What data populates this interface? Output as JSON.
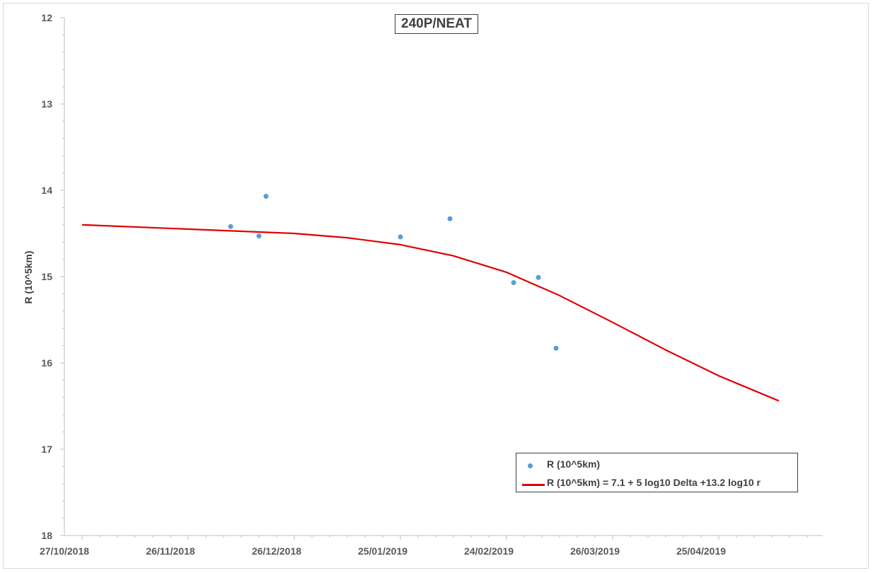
{
  "chart_data": {
    "type": "scatter",
    "title": "240P/NEAT",
    "xlabel": "",
    "ylabel": "R (10^5km)",
    "x_tick_labels": [
      "27/10/2018",
      "26/11/2018",
      "26/12/2018",
      "25/01/2019",
      "24/02/2019",
      "26/03/2019",
      "25/04/2019"
    ],
    "y_tick_labels": [
      "12",
      "13",
      "14",
      "15",
      "16",
      "17",
      "18"
    ],
    "ylim": [
      12,
      18
    ],
    "y_inverted": true,
    "grid": false,
    "legend_position": "bottom-right",
    "colors": {
      "points": "#5b9bd5",
      "fit": "#e00000"
    },
    "series": [
      {
        "name": "R (10^5km)",
        "kind": "scatter",
        "points": [
          {
            "x": "2018-12-08",
            "y": 14.42
          },
          {
            "x": "2018-12-16",
            "y": 14.53
          },
          {
            "x": "2018-12-18",
            "y": 14.07
          },
          {
            "x": "2019-01-25",
            "y": 14.54
          },
          {
            "x": "2019-02-08",
            "y": 14.33
          },
          {
            "x": "2019-02-26",
            "y": 15.07
          },
          {
            "x": "2019-03-05",
            "y": 15.01
          },
          {
            "x": "2019-03-10",
            "y": 15.83
          }
        ]
      },
      {
        "name": "R (10^5km) = 7.1 + 5 log10 Delta +13.2 log10 r",
        "kind": "line",
        "points": [
          {
            "x": "2018-10-27",
            "y": 14.4
          },
          {
            "x": "2018-11-26",
            "y": 14.45
          },
          {
            "x": "2018-12-26",
            "y": 14.5
          },
          {
            "x": "2019-01-10",
            "y": 14.55
          },
          {
            "x": "2019-01-25",
            "y": 14.63
          },
          {
            "x": "2019-02-09",
            "y": 14.76
          },
          {
            "x": "2019-02-24",
            "y": 14.95
          },
          {
            "x": "2019-03-11",
            "y": 15.22
          },
          {
            "x": "2019-03-26",
            "y": 15.53
          },
          {
            "x": "2019-04-10",
            "y": 15.85
          },
          {
            "x": "2019-04-25",
            "y": 16.15
          },
          {
            "x": "2019-05-12",
            "y": 16.44
          }
        ]
      }
    ]
  }
}
